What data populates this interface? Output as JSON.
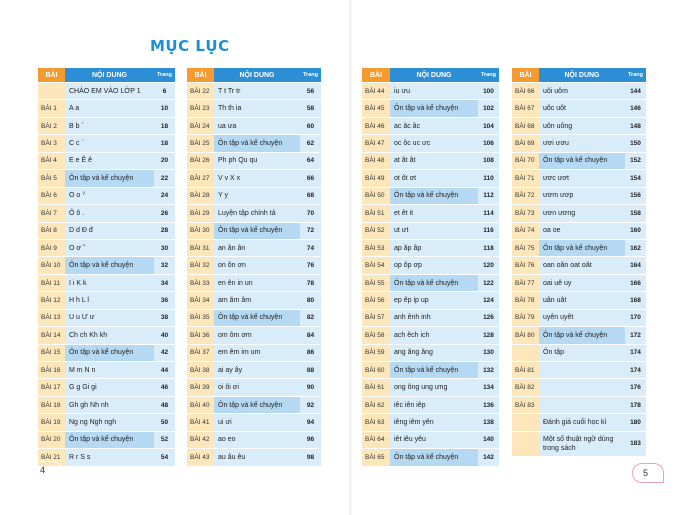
{
  "title": "MỤC LỤC",
  "header": {
    "bai": "BÀI",
    "noidung": "NỘI DUNG",
    "trang": "Trang"
  },
  "table1": [
    {
      "b": "",
      "c": "CHÀO EM VÀO LỚP 1",
      "p": "6"
    },
    {
      "b": "BÀI 1",
      "c": "A  a",
      "p": "10"
    },
    {
      "b": "BÀI 2",
      "c": "B  b  ˋ",
      "p": "18"
    },
    {
      "b": "BÀI 3",
      "c": "C  c  ˊ",
      "p": "18"
    },
    {
      "b": "BÀI 4",
      "c": "E  e  Ê  ê",
      "p": "20"
    },
    {
      "b": "BÀI 5",
      "c": "Ôn tập và kể chuyện",
      "p": "22",
      "hl": true
    },
    {
      "b": "BÀI 6",
      "c": "O  o  ˀ",
      "p": "24"
    },
    {
      "b": "BÀI 7",
      "c": "Ô  ô  .",
      "p": "26"
    },
    {
      "b": "BÀI 8",
      "c": "D  d  Đ  đ",
      "p": "28"
    },
    {
      "b": "BÀI 9",
      "c": "O  ơ  ˜",
      "p": "30"
    },
    {
      "b": "BÀI 10",
      "c": "Ôn tập và kể chuyện",
      "p": "32",
      "hl": true
    },
    {
      "b": "BÀI 11",
      "c": "I  i  K  k",
      "p": "34"
    },
    {
      "b": "BÀI 12",
      "c": "H  h  L  l",
      "p": "36"
    },
    {
      "b": "BÀI 13",
      "c": "U  u  Ư  ư",
      "p": "38"
    },
    {
      "b": "BÀI 14",
      "c": "Ch  ch  Kh  kh",
      "p": "40"
    },
    {
      "b": "BÀI 15",
      "c": "Ôn tập và kể chuyện",
      "p": "42",
      "hl": true
    },
    {
      "b": "BÀI 16",
      "c": "M  m  N  n",
      "p": "44"
    },
    {
      "b": "BÀI 17",
      "c": "G  g   Gi  gi",
      "p": "46"
    },
    {
      "b": "BÀI 18",
      "c": "Gh  gh   Nh  nh",
      "p": "48"
    },
    {
      "b": "BÀI 19",
      "c": "Ng  ng   Ngh  ngh",
      "p": "50"
    },
    {
      "b": "BÀI 20",
      "c": "Ôn tập và kể chuyện",
      "p": "52",
      "hl": true
    },
    {
      "b": "BÀI 21",
      "c": "R  r  S  s",
      "p": "54"
    }
  ],
  "table2": [
    {
      "b": "BÀI 22",
      "c": "T  t   Tr  tr",
      "p": "56"
    },
    {
      "b": "BÀI 23",
      "c": "Th  th    ia",
      "p": "58"
    },
    {
      "b": "BÀI 24",
      "c": "ua  ưa",
      "p": "60"
    },
    {
      "b": "BÀI 25",
      "c": "Ôn tập và kể chuyện",
      "p": "62",
      "hl": true
    },
    {
      "b": "BÀI 26",
      "c": "Ph  ph    Qu  qu",
      "p": "64"
    },
    {
      "b": "BÀI 27",
      "c": "V  v    X  x",
      "p": "66"
    },
    {
      "b": "BÀI 28",
      "c": "Y  y",
      "p": "68"
    },
    {
      "b": "BÀI 29",
      "c": "Luyện tập chính tả",
      "p": "70"
    },
    {
      "b": "BÀI 30",
      "c": "Ôn tập và kể chuyện",
      "p": "72",
      "hl": true
    },
    {
      "b": "BÀI 31",
      "c": "an   ăn   ân",
      "p": "74"
    },
    {
      "b": "BÀI 32",
      "c": "on   ôn   ơn",
      "p": "76"
    },
    {
      "b": "BÀI 33",
      "c": "en   ên   in   un",
      "p": "78"
    },
    {
      "b": "BÀI 34",
      "c": "am   ăm   âm",
      "p": "80"
    },
    {
      "b": "BÀI 35",
      "c": "Ôn tập và kể chuyện",
      "p": "82",
      "hl": true
    },
    {
      "b": "BÀI 36",
      "c": "om   ôm   ơm",
      "p": "84"
    },
    {
      "b": "BÀI 37",
      "c": "em   êm   im   um",
      "p": "86"
    },
    {
      "b": "BÀI 38",
      "c": "ai   ay   ây",
      "p": "88"
    },
    {
      "b": "BÀI 39",
      "c": "oi   ôi   ơi",
      "p": "90"
    },
    {
      "b": "BÀI 40",
      "c": "Ôn tập và kể chuyện",
      "p": "92",
      "hl": true
    },
    {
      "b": "BÀI 41",
      "c": "ui   ưi",
      "p": "94"
    },
    {
      "b": "BÀI 42",
      "c": "ao   eo",
      "p": "96"
    },
    {
      "b": "BÀI 43",
      "c": "au   âu   êu",
      "p": "98"
    }
  ],
  "table3": [
    {
      "b": "BÀI 44",
      "c": "iu   ưu",
      "p": "100"
    },
    {
      "b": "BÀI 45",
      "c": "Ôn tập và kể chuyện",
      "p": "102",
      "hl": true
    },
    {
      "b": "BÀI 46",
      "c": "ac   ăc   âc",
      "p": "104"
    },
    {
      "b": "BÀI 47",
      "c": "oc   ôc   uc   ưc",
      "p": "106"
    },
    {
      "b": "BÀI 48",
      "c": "at   ăt   ât",
      "p": "108"
    },
    {
      "b": "BÀI 49",
      "c": "ot   ôt   ơt",
      "p": "110"
    },
    {
      "b": "BÀI 50",
      "c": "Ôn tập và kể chuyện",
      "p": "112",
      "hl": true
    },
    {
      "b": "BÀI 51",
      "c": "et   êt   it",
      "p": "114"
    },
    {
      "b": "BÀI 52",
      "c": "ut   ưt",
      "p": "116"
    },
    {
      "b": "BÀI 53",
      "c": "ap   ăp   âp",
      "p": "118"
    },
    {
      "b": "BÀI 54",
      "c": "op   ôp   ơp",
      "p": "120"
    },
    {
      "b": "BÀI 55",
      "c": "Ôn tập và kể chuyện",
      "p": "122",
      "hl": true
    },
    {
      "b": "BÀI 56",
      "c": "ep   êp   ip   up",
      "p": "124"
    },
    {
      "b": "BÀI 57",
      "c": "anh   ênh   inh",
      "p": "126"
    },
    {
      "b": "BÀI 58",
      "c": "ach   êch   ich",
      "p": "128"
    },
    {
      "b": "BÀI 59",
      "c": "ang   ăng   âng",
      "p": "130"
    },
    {
      "b": "BÀI 60",
      "c": "Ôn tập và kể chuyện",
      "p": "132",
      "hl": true
    },
    {
      "b": "BÀI 61",
      "c": "ong   ông   ung   ưng",
      "p": "134"
    },
    {
      "b": "BÀI 62",
      "c": "iêc   iên   iêp",
      "p": "136"
    },
    {
      "b": "BÀI 63",
      "c": "iêng   iêm   yên",
      "p": "138"
    },
    {
      "b": "BÀI 64",
      "c": "iêt   iêu   yêu",
      "p": "140"
    },
    {
      "b": "BÀI 65",
      "c": "Ôn tập và kể chuyện",
      "p": "142",
      "hl": true
    }
  ],
  "table4": [
    {
      "b": "BÀI 66",
      "c": "uôi   uôm",
      "p": "144"
    },
    {
      "b": "BÀI 67",
      "c": "uôc   uôt",
      "p": "146"
    },
    {
      "b": "BÀI 68",
      "c": "uôn   uông",
      "p": "148"
    },
    {
      "b": "BÀI 69",
      "c": "ươi   ươu",
      "p": "150"
    },
    {
      "b": "BÀI 70",
      "c": "Ôn tập và kể chuyện",
      "p": "152",
      "hl": true
    },
    {
      "b": "BÀI 71",
      "c": "ươc   ươt",
      "p": "154"
    },
    {
      "b": "BÀI 72",
      "c": "ươm   ươp",
      "p": "156"
    },
    {
      "b": "BÀI 73",
      "c": "ươn   ương",
      "p": "158"
    },
    {
      "b": "BÀI 74",
      "c": "oa   oe",
      "p": "160"
    },
    {
      "b": "BÀI 75",
      "c": "Ôn tập và kể chuyện",
      "p": "162",
      "hl": true
    },
    {
      "b": "BÀI 76",
      "c": "oan   oăn   oat   oăt",
      "p": "164"
    },
    {
      "b": "BÀI 77",
      "c": "oai   uê   uy",
      "p": "166"
    },
    {
      "b": "BÀI 78",
      "c": "uân   uât",
      "p": "168"
    },
    {
      "b": "BÀI 79",
      "c": "uyên   uyêt",
      "p": "170"
    },
    {
      "b": "BÀI 80",
      "c": "Ôn tập và kể chuyện",
      "p": "172",
      "hl": true
    },
    {
      "b": "",
      "c": "Ôn tập",
      "p": "174"
    },
    {
      "b": "BÀI 81",
      "c": "",
      "p": "174"
    },
    {
      "b": "BÀI 82",
      "c": "",
      "p": "176"
    },
    {
      "b": "BÀI 83",
      "c": "",
      "p": "178"
    },
    {
      "b": "",
      "c": "Đánh giá cuối học kì",
      "p": "180"
    },
    {
      "b": "",
      "c": "Một số thuật ngữ dùng trong sách",
      "p": "183",
      "wrap": true
    }
  ],
  "pages": {
    "left": "4",
    "right": "5"
  }
}
